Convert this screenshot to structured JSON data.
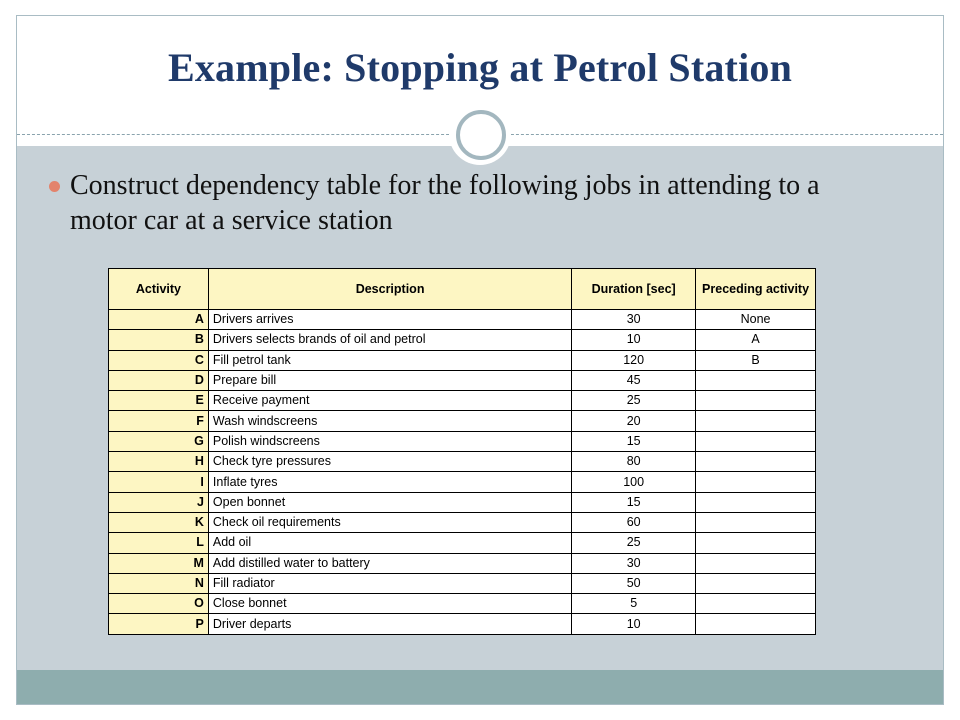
{
  "slide": {
    "title": "Example: Stopping at Petrol Station",
    "bullet": "Construct dependency table for the following jobs in attending to a motor car at a service station"
  },
  "table": {
    "headers": {
      "activity": "Activity",
      "description": "Description",
      "duration": "Duration [sec]",
      "preceding": "Preceding activity"
    },
    "rows": [
      {
        "activity": "A",
        "description": "Drivers arrives",
        "duration": "30",
        "preceding": "None"
      },
      {
        "activity": "B",
        "description": "Drivers selects brands of oil and petrol",
        "duration": "10",
        "preceding": "A"
      },
      {
        "activity": "C",
        "description": "Fill petrol tank",
        "duration": "120",
        "preceding": "B"
      },
      {
        "activity": "D",
        "description": "Prepare bill",
        "duration": "45",
        "preceding": ""
      },
      {
        "activity": "E",
        "description": "Receive payment",
        "duration": "25",
        "preceding": ""
      },
      {
        "activity": "F",
        "description": "Wash windscreens",
        "duration": "20",
        "preceding": ""
      },
      {
        "activity": "G",
        "description": "Polish windscreens",
        "duration": "15",
        "preceding": ""
      },
      {
        "activity": "H",
        "description": "Check tyre pressures",
        "duration": "80",
        "preceding": ""
      },
      {
        "activity": "I",
        "description": "Inflate tyres",
        "duration": "100",
        "preceding": ""
      },
      {
        "activity": "J",
        "description": "Open bonnet",
        "duration": "15",
        "preceding": ""
      },
      {
        "activity": "K",
        "description": "Check oil requirements",
        "duration": "60",
        "preceding": ""
      },
      {
        "activity": "L",
        "description": "Add oil",
        "duration": "25",
        "preceding": ""
      },
      {
        "activity": "M",
        "description": "Add distilled water to battery",
        "duration": "30",
        "preceding": ""
      },
      {
        "activity": "N",
        "description": "Fill radiator",
        "duration": "50",
        "preceding": ""
      },
      {
        "activity": "O",
        "description": "Close bonnet",
        "duration": "5",
        "preceding": ""
      },
      {
        "activity": "P",
        "description": "Driver departs",
        "duration": "10",
        "preceding": ""
      }
    ]
  },
  "colors": {
    "title": "#1f3a6a",
    "content_band": "#c7d1d7",
    "footer_band": "#8eadae",
    "bullet": "#e3836c",
    "table_highlight": "#fdf6c3"
  }
}
